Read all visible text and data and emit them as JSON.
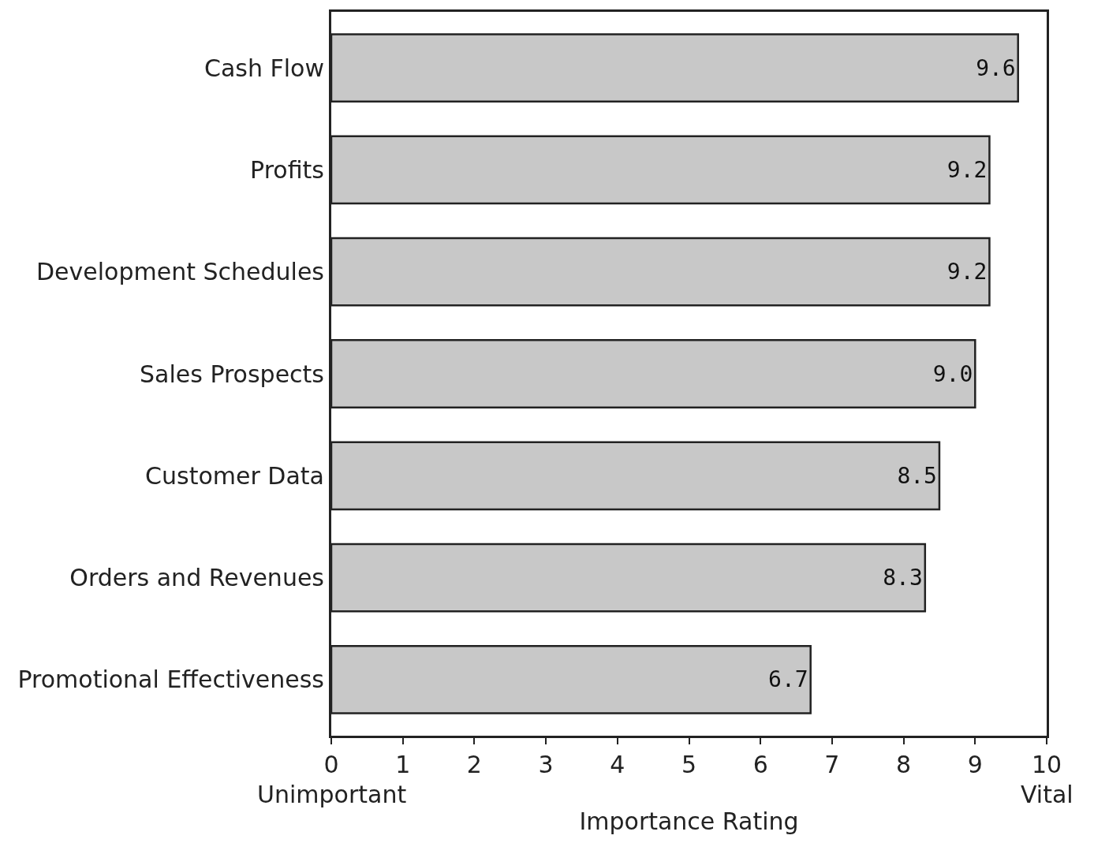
{
  "chart_data": {
    "type": "bar",
    "orientation": "horizontal",
    "categories": [
      "Cash Flow",
      "Profits",
      "Development Schedules",
      "Sales Prospects",
      "Customer Data",
      "Orders and Revenues",
      "Promotional Effectiveness"
    ],
    "values": [
      9.6,
      9.2,
      9.2,
      9.0,
      8.5,
      8.3,
      6.7
    ],
    "value_labels": [
      "9.6",
      "9.2",
      "9.2",
      "9.0",
      "8.5",
      "8.3",
      "6.7"
    ],
    "color": "#c8c8c8",
    "xlim": [
      0,
      10
    ],
    "xticks": [
      0,
      1,
      2,
      3,
      4,
      5,
      6,
      7,
      8,
      9,
      10
    ],
    "xlabel": "Importance Rating",
    "annotations": [
      "Unimportant",
      "Vital"
    ],
    "grid": false
  }
}
